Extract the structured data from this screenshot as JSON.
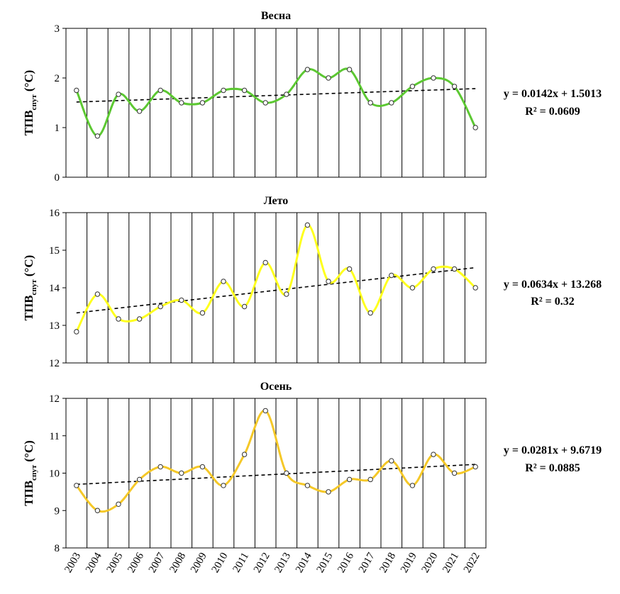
{
  "chart_data": [
    {
      "type": "line",
      "title": "Весна",
      "ylabel": {
        "main": "ТПВ",
        "sub": "спут",
        "unit": " (°C)"
      },
      "x": [
        2003,
        2004,
        2005,
        2006,
        2007,
        2008,
        2009,
        2010,
        2011,
        2012,
        2013,
        2014,
        2015,
        2016,
        2017,
        2018,
        2019,
        2020,
        2021,
        2022
      ],
      "values": [
        1.75,
        0.83,
        1.67,
        1.33,
        1.75,
        1.5,
        1.5,
        1.75,
        1.75,
        1.5,
        1.67,
        2.17,
        2.0,
        2.17,
        1.5,
        1.5,
        1.83,
        2.0,
        1.83,
        1.0
      ],
      "ylim": [
        0,
        3
      ],
      "yticks": [
        "0",
        "1",
        "2",
        "3"
      ],
      "line_color": "#5cc832",
      "trend": {
        "slope": 0.0142,
        "intercept": 1.5013,
        "equation": "y = 0.0142x + 1.5013",
        "r2": "R² = 0.0609"
      }
    },
    {
      "type": "line",
      "title": "Лето",
      "ylabel": {
        "main": "ТПВ",
        "sub": "спут",
        "unit": " (°C)"
      },
      "x": [
        2003,
        2004,
        2005,
        2006,
        2007,
        2008,
        2009,
        2010,
        2011,
        2012,
        2013,
        2014,
        2015,
        2016,
        2017,
        2018,
        2019,
        2020,
        2021,
        2022
      ],
      "values": [
        12.83,
        13.83,
        13.17,
        13.17,
        13.5,
        13.67,
        13.33,
        14.17,
        13.5,
        14.67,
        13.83,
        15.67,
        14.17,
        14.5,
        13.33,
        14.33,
        14.0,
        14.5,
        14.5,
        14.0
      ],
      "ylim": [
        12,
        16
      ],
      "yticks": [
        "12",
        "13",
        "14",
        "15",
        "16"
      ],
      "line_color": "#ffff1e",
      "trend": {
        "slope": 0.0634,
        "intercept": 13.268,
        "equation": "y = 0.0634x + 13.268",
        "r2": "R² = 0.32"
      }
    },
    {
      "type": "line",
      "title": "Осень",
      "ylabel": {
        "main": "ТПВ",
        "sub": "спут",
        "unit": " (°C)"
      },
      "x": [
        2003,
        2004,
        2005,
        2006,
        2007,
        2008,
        2009,
        2010,
        2011,
        2012,
        2013,
        2014,
        2015,
        2016,
        2017,
        2018,
        2019,
        2020,
        2021,
        2022
      ],
      "values": [
        9.67,
        9.0,
        9.17,
        9.83,
        10.17,
        10.0,
        10.17,
        9.67,
        10.5,
        11.67,
        10.0,
        9.67,
        9.5,
        9.83,
        9.83,
        10.33,
        9.67,
        10.5,
        10.0,
        10.17
      ],
      "ylim": [
        8,
        12
      ],
      "yticks": [
        "8",
        "9",
        "10",
        "11",
        "12"
      ],
      "line_color": "#f5c828",
      "trend": {
        "slope": 0.0281,
        "intercept": 9.6719,
        "equation": "y = 0.0281x + 9.6719",
        "r2": "R² = 0.0885"
      }
    }
  ],
  "x_tick_labels": [
    "2003",
    "2004",
    "2005",
    "2006",
    "2007",
    "2008",
    "2009",
    "2010",
    "2011",
    "2012",
    "2013",
    "2014",
    "2015",
    "2016",
    "2017",
    "2018",
    "2019",
    "2020",
    "2021",
    "2022"
  ]
}
